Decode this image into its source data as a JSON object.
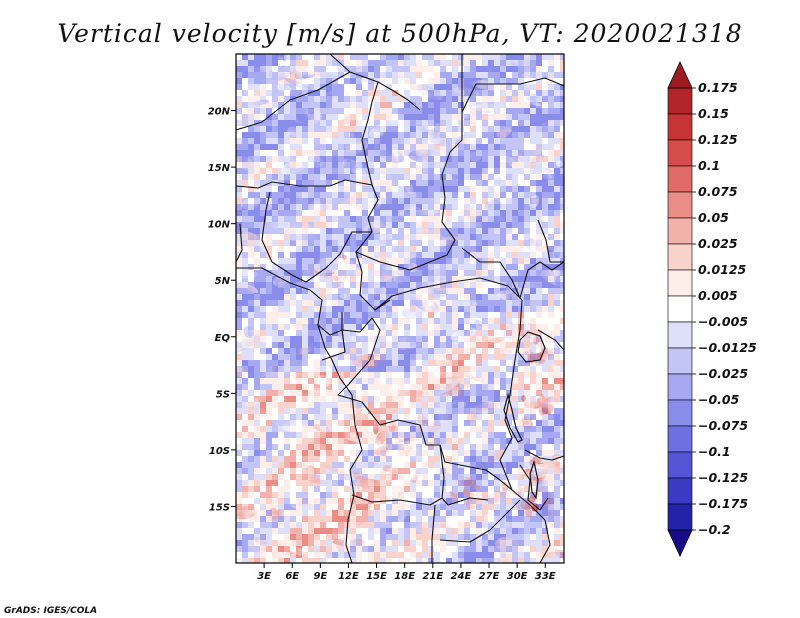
{
  "chart_data": {
    "type": "heatmap",
    "title": "Vertical velocity [m/s] at 500hPa, VT: 2020021318",
    "variable": "Vertical velocity",
    "units": "m/s",
    "level": "500hPa",
    "valid_time": "2020021318",
    "x_range": [
      0,
      35
    ],
    "y_range": [
      -20,
      25
    ],
    "x_ticks": [
      3,
      6,
      9,
      12,
      15,
      18,
      21,
      24,
      27,
      30,
      33
    ],
    "x_tick_labels": [
      "3E",
      "6E",
      "9E",
      "12E",
      "15E",
      "18E",
      "21E",
      "24E",
      "27E",
      "30E",
      "33E"
    ],
    "y_ticks": [
      20,
      15,
      10,
      5,
      0,
      -5,
      -10,
      -15
    ],
    "y_tick_labels": [
      "20N",
      "15N",
      "10N",
      "5N",
      "EQ",
      "5S",
      "10S",
      "15S"
    ],
    "colorbar": {
      "levels": [
        0.175,
        0.15,
        0.125,
        0.1,
        0.075,
        0.05,
        0.025,
        0.0125,
        0.005,
        -0.005,
        -0.0125,
        -0.025,
        -0.05,
        -0.075,
        -0.1,
        -0.125,
        -0.175,
        -0.2
      ],
      "labels": [
        "0.175",
        "0.15",
        "0.125",
        "0.1",
        "0.075",
        "0.05",
        "0.025",
        "0.0125",
        "0.005",
        "−0.005",
        "−0.0125",
        "−0.025",
        "−0.05",
        "−0.075",
        "−0.1",
        "−0.125",
        "−0.175",
        "−0.2"
      ],
      "colors": [
        "#a01b20",
        "#b2262a",
        "#c63436",
        "#d64c4b",
        "#e06a66",
        "#ea8d87",
        "#f3b1ab",
        "#f9d2cc",
        "#fdeeea",
        "#ffffff",
        "#dedff9",
        "#c3c5f6",
        "#a6a8f1",
        "#8a8ceb",
        "#6e70e1",
        "#5455d4",
        "#3a3bc2",
        "#2323a8",
        "#160c8a"
      ],
      "extend": "both"
    }
  },
  "credit": "GrADS: IGES/COLA"
}
